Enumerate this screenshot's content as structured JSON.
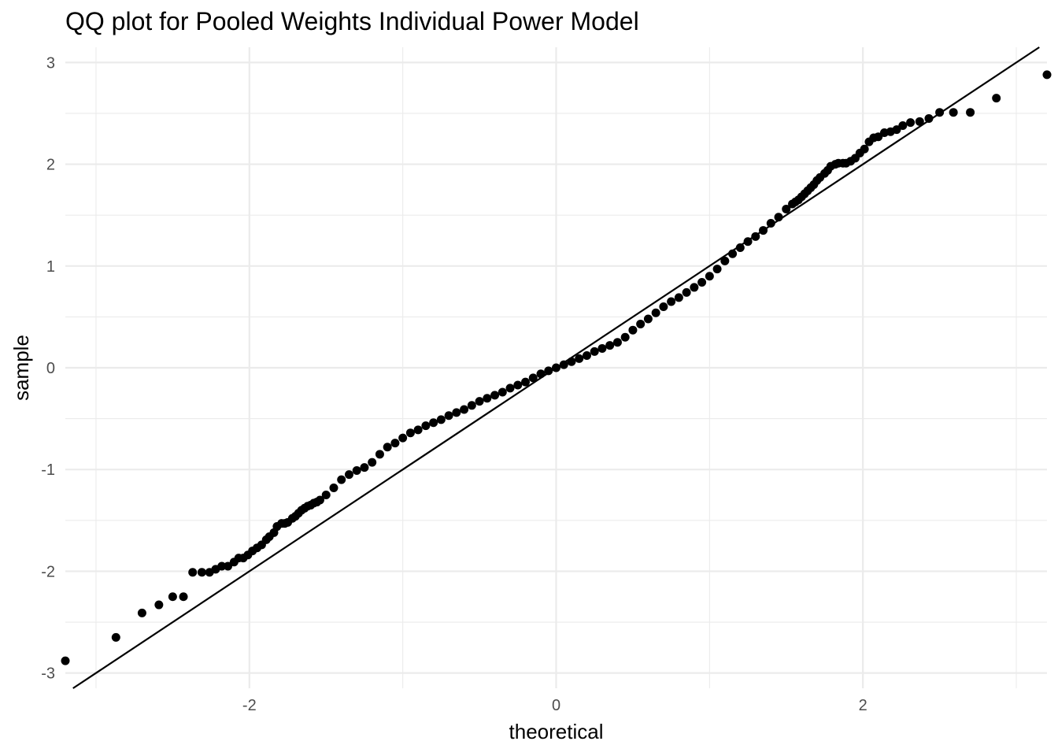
{
  "chart_data": {
    "type": "scatter",
    "title": "QQ plot for Pooled Weights Individual Power Model",
    "xlabel": "theoretical",
    "ylabel": "sample",
    "xlim": [
      -3.2,
      3.2
    ],
    "ylim": [
      -3.15,
      3.15
    ],
    "x_ticks": [
      -2,
      0,
      2
    ],
    "x_tick_labels": [
      "-2",
      "0",
      "2"
    ],
    "y_ticks": [
      -3,
      -2,
      -1,
      0,
      1,
      2,
      3
    ],
    "y_tick_labels": [
      "-3",
      "-2",
      "-1",
      "0",
      "1",
      "2",
      "3"
    ],
    "grid": true,
    "legend": "none",
    "reference_line": {
      "intercept": 0,
      "slope": 1
    },
    "point_color": "#000000",
    "line_color": "#000000",
    "series": [
      {
        "x": [
          -3.2,
          -2.87,
          -2.7,
          -2.59,
          -2.5,
          -2.43,
          -2.37,
          -2.31,
          -2.26,
          -2.22,
          -2.18,
          -2.14,
          -2.1,
          -2.07,
          -2.04,
          -2.01,
          -1.98,
          -1.95,
          -1.92,
          -1.89,
          -1.87,
          -1.84,
          -1.82,
          -1.79,
          -1.77,
          -1.75,
          -1.72,
          -1.7,
          -1.68,
          -1.66,
          -1.64,
          -1.62,
          -1.6,
          -1.58,
          -1.56,
          -1.54,
          -1.5,
          -1.45,
          -1.4,
          -1.35,
          -1.3,
          -1.25,
          -1.2,
          -1.15,
          -1.1,
          -1.05,
          -1.0,
          -0.95,
          -0.9,
          -0.85,
          -0.8,
          -0.75,
          -0.7,
          -0.65,
          -0.6,
          -0.55,
          -0.5,
          -0.45,
          -0.4,
          -0.35,
          -0.3,
          -0.25,
          -0.2,
          -0.15,
          -0.1,
          -0.05,
          0.0,
          0.05,
          0.1,
          0.15,
          0.2,
          0.25,
          0.3,
          0.35,
          0.4,
          0.45,
          0.5,
          0.55,
          0.6,
          0.65,
          0.7,
          0.75,
          0.8,
          0.85,
          0.9,
          0.95,
          1.0,
          1.05,
          1.1,
          1.15,
          1.2,
          1.25,
          1.3,
          1.35,
          1.4,
          1.45,
          1.5,
          1.54,
          1.56,
          1.58,
          1.6,
          1.62,
          1.64,
          1.66,
          1.68,
          1.7,
          1.72,
          1.75,
          1.77,
          1.79,
          1.82,
          1.84,
          1.87,
          1.89,
          1.92,
          1.95,
          1.98,
          2.01,
          2.04,
          2.07,
          2.1,
          2.14,
          2.18,
          2.22,
          2.26,
          2.31,
          2.37,
          2.43,
          2.5,
          2.59,
          2.7,
          2.87,
          3.2
        ],
        "y": [
          -2.88,
          -2.65,
          -2.41,
          -2.33,
          -2.25,
          -2.25,
          -2.01,
          -2.01,
          -2.01,
          -1.98,
          -1.95,
          -1.95,
          -1.91,
          -1.87,
          -1.87,
          -1.84,
          -1.8,
          -1.77,
          -1.74,
          -1.69,
          -1.66,
          -1.62,
          -1.56,
          -1.53,
          -1.53,
          -1.52,
          -1.48,
          -1.46,
          -1.43,
          -1.4,
          -1.38,
          -1.36,
          -1.35,
          -1.33,
          -1.32,
          -1.3,
          -1.25,
          -1.18,
          -1.1,
          -1.05,
          -1.01,
          -0.98,
          -0.93,
          -0.85,
          -0.78,
          -0.74,
          -0.69,
          -0.64,
          -0.61,
          -0.57,
          -0.54,
          -0.51,
          -0.47,
          -0.44,
          -0.41,
          -0.37,
          -0.33,
          -0.3,
          -0.27,
          -0.24,
          -0.2,
          -0.17,
          -0.14,
          -0.1,
          -0.06,
          -0.03,
          0.0,
          0.03,
          0.06,
          0.09,
          0.12,
          0.16,
          0.19,
          0.22,
          0.25,
          0.3,
          0.37,
          0.43,
          0.48,
          0.54,
          0.6,
          0.65,
          0.69,
          0.74,
          0.79,
          0.84,
          0.9,
          0.97,
          1.05,
          1.12,
          1.18,
          1.24,
          1.29,
          1.35,
          1.42,
          1.48,
          1.56,
          1.61,
          1.63,
          1.65,
          1.68,
          1.71,
          1.74,
          1.77,
          1.8,
          1.84,
          1.87,
          1.91,
          1.94,
          1.98,
          2.0,
          2.01,
          2.01,
          2.01,
          2.03,
          2.06,
          2.11,
          2.15,
          2.22,
          2.26,
          2.27,
          2.31,
          2.32,
          2.34,
          2.38,
          2.41,
          2.42,
          2.45,
          2.51,
          2.51,
          2.51,
          2.65,
          2.88
        ]
      }
    ]
  }
}
